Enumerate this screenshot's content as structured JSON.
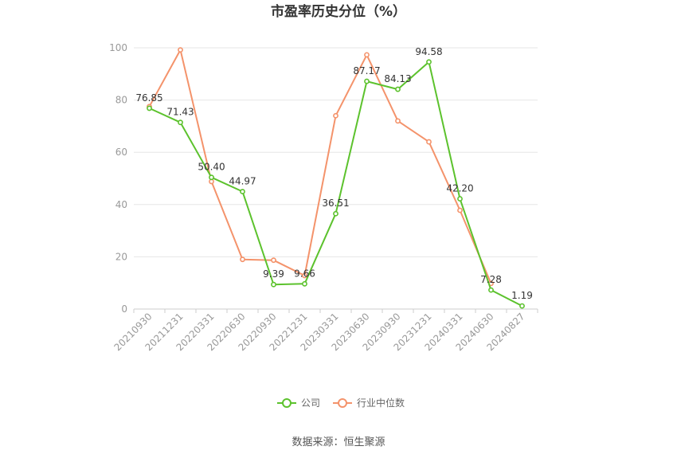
{
  "chart_data": {
    "type": "line",
    "title": "市盈率历史分位（%）",
    "categories": [
      "20210930",
      "20211231",
      "20220331",
      "20220630",
      "20220930",
      "20221231",
      "20230331",
      "20230630",
      "20230930",
      "20231231",
      "20240331",
      "20240630",
      "20240827"
    ],
    "ylim": [
      0,
      100
    ],
    "yticks": [
      0,
      20,
      40,
      60,
      80,
      100
    ],
    "grid": true,
    "legend_position": "bottom",
    "series": [
      {
        "name": "公司",
        "color": "#5cc22d",
        "values": [
          76.85,
          71.43,
          50.4,
          44.97,
          9.39,
          9.66,
          36.51,
          87.17,
          84.13,
          94.58,
          42.2,
          7.28,
          1.19
        ],
        "labels": [
          "76.85",
          "71.43",
          "50.40",
          "44.97",
          "9.39",
          "9.66",
          "36.51",
          "87.17",
          "84.13",
          "94.58",
          "42.20",
          "7.28",
          "1.19"
        ]
      },
      {
        "name": "行业中位数",
        "color": "#f4936b",
        "values": [
          77.5,
          99.2,
          48.8,
          19.0,
          18.7,
          12.8,
          74.0,
          97.3,
          72.0,
          64.0,
          37.8,
          9.8,
          null
        ]
      }
    ],
    "source": "数据来源：恒生聚源"
  }
}
